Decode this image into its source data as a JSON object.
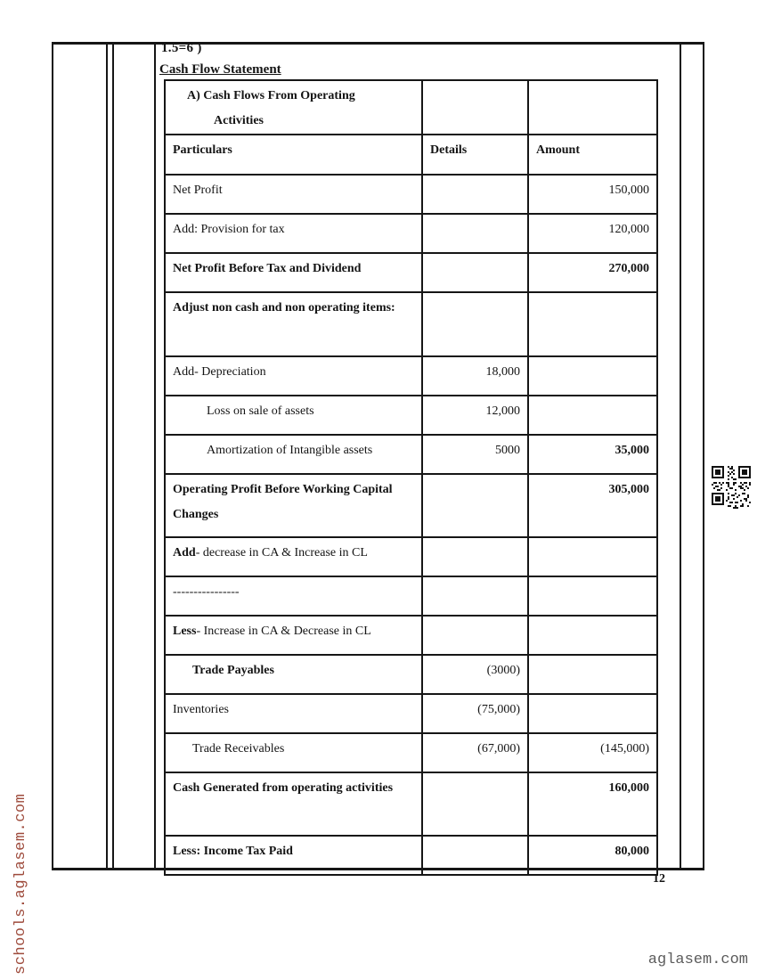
{
  "document": {
    "question_marks": "1.5=6 )",
    "title": "Cash Flow Statement",
    "page_number": "12",
    "side_watermark": "schools.aglasem.com",
    "footer_watermark": "aglasem.com",
    "side_watermark_color": "#9e4b3c",
    "footer_watermark_color": "#5c5c5c",
    "border_color": "#161616"
  },
  "table": {
    "section_header_line1": "A)  Cash Flows From Operating",
    "section_header_line2": "Activities",
    "columns": [
      "Particulars",
      "Details",
      "Amount"
    ],
    "rows": [
      {
        "particulars": "Net Profit",
        "details": "",
        "amount": "150,000"
      },
      {
        "particulars": "Add: Provision for tax",
        "details": "",
        "amount": "120,000"
      },
      {
        "particulars": "Net Profit Before Tax and Dividend",
        "bold": true,
        "details": "",
        "amount": "270,000",
        "amount_bold": true
      },
      {
        "particulars": "Adjust non cash and non operating items:",
        "bold": true,
        "details": "",
        "amount": ""
      },
      {
        "particulars": "Add- Depreciation",
        "details": "18,000",
        "amount": ""
      },
      {
        "particulars": "Loss on sale of assets",
        "indent": 2,
        "details": "12,000",
        "amount": ""
      },
      {
        "particulars": "Amortization of Intangible assets",
        "indent": 2,
        "details": "5000",
        "amount": "35,000",
        "amount_bold": true
      },
      {
        "particulars": "Operating Profit Before Working Capital Changes",
        "bold": true,
        "details": "",
        "amount": "305,000",
        "amount_bold": true
      },
      {
        "prefix": "Add",
        "rest": "- decrease in CA & Increase in CL",
        "details": "",
        "amount": ""
      },
      {
        "particulars": "----------------",
        "details": "",
        "amount": ""
      },
      {
        "prefix": "Less",
        "rest": "- Increase in CA & Decrease in CL",
        "details": "",
        "amount": ""
      },
      {
        "particulars": "Trade Payables",
        "bold": true,
        "indent": 1,
        "details": "(3000)",
        "amount": ""
      },
      {
        "particulars": "Inventories",
        "details": "(75,000)",
        "amount": ""
      },
      {
        "particulars": "Trade Receivables",
        "indent": 1,
        "details": "(67,000)",
        "amount": "(145,000)"
      },
      {
        "particulars": "Cash Generated from operating activities",
        "bold": true,
        "details": "",
        "amount": "160,000",
        "amount_bold": true
      },
      {
        "particulars": "Less: Income Tax Paid",
        "bold": true,
        "details": "",
        "amount": "80,000",
        "amount_bold": true
      }
    ]
  }
}
